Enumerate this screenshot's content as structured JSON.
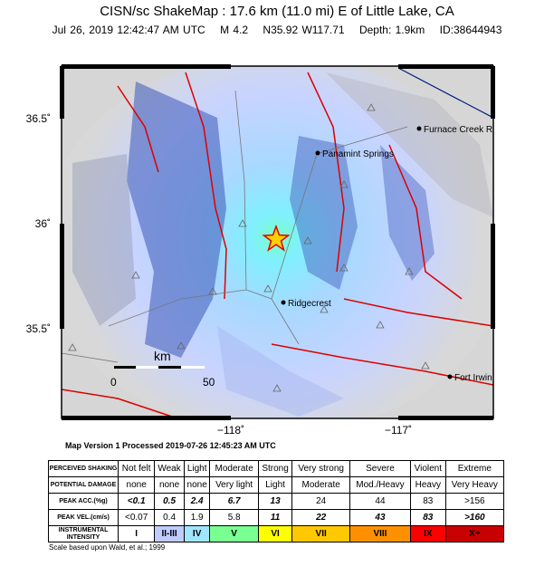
{
  "header": {
    "title": "CISN/sc ShakeMap : 17.6 km (11.0 mi) E of Little Lake, CA",
    "subtitle": [
      "Jul 26, 2019 12:42:47 AM UTC",
      "M 4.2",
      "N35.92 W117.71",
      "Depth: 1.9km",
      "ID:38644943"
    ]
  },
  "map": {
    "lat_ticks": [
      "36.5˚",
      "36˚",
      "35.5˚"
    ],
    "lon_ticks": [
      "−118˚",
      "−117˚"
    ],
    "places": [
      "Furnace Creek R",
      "Panamint Springs",
      "Ridgecrest",
      "Fort Irwin"
    ],
    "scale": {
      "unit": "km",
      "labels": [
        "0",
        "50"
      ]
    }
  },
  "map_version": "Map Version 1 Processed 2019-07-26 12:45:23 AM UTC",
  "table": {
    "rows": [
      [
        "PERCEIVED SHAKING",
        "Not felt",
        "Weak",
        "Light",
        "Moderate",
        "Strong",
        "Very strong",
        "Severe",
        "Violent",
        "Extreme"
      ],
      [
        "POTENTIAL DAMAGE",
        "none",
        "none",
        "none",
        "Very light",
        "Light",
        "Moderate",
        "Mod./Heavy",
        "Heavy",
        "Very Heavy"
      ],
      [
        "PEAK ACC.(%g)",
        "<0.1",
        "0.5",
        "2.4",
        "6.7",
        "13",
        "24",
        "44",
        "83",
        ">156"
      ],
      [
        "PEAK VEL.(cm/s)",
        "<0.07",
        "0.4",
        "1.9",
        "5.8",
        "11",
        "22",
        "43",
        "83",
        ">160"
      ],
      [
        "INSTRUMENTAL INTENSITY",
        "I",
        "II-III",
        "IV",
        "V",
        "VI",
        "VII",
        "VIII",
        "IX",
        "X+"
      ]
    ]
  },
  "footnote": "Scale based upon Wald, et al.; 1999"
}
